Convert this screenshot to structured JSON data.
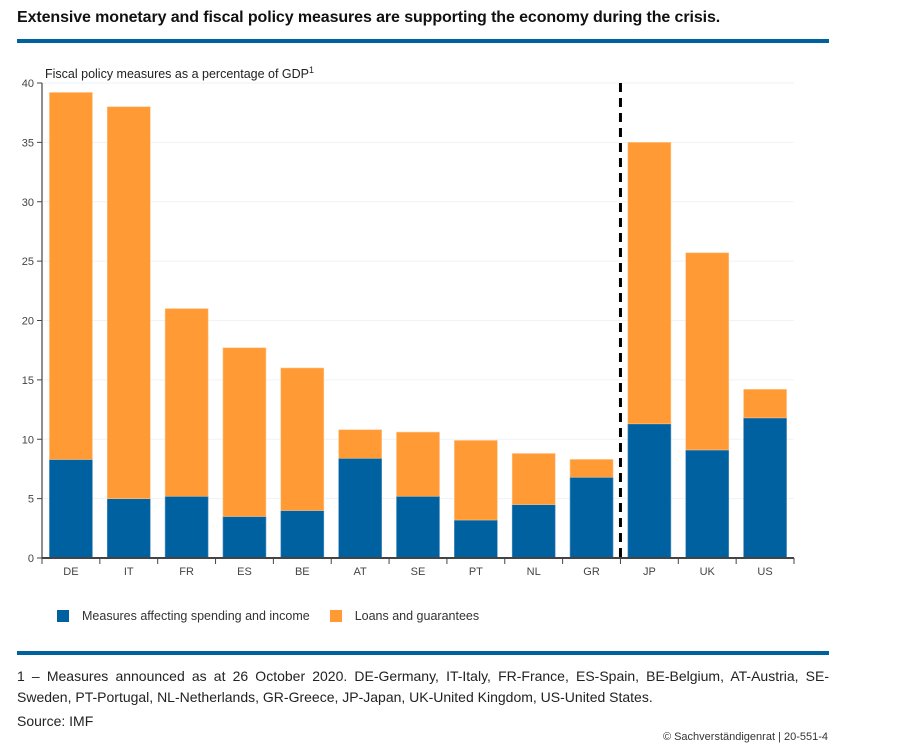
{
  "header": {
    "title": "Extensive monetary and fiscal policy measures are supporting the economy during the crisis."
  },
  "colors": {
    "accent_rule": "#00619f",
    "spending": "#0061a1",
    "loans": "#ff9a35",
    "divider": "#000000"
  },
  "chart_data": {
    "type": "bar",
    "stacked": true,
    "title": "Fiscal policy measures as a percentage of GDP",
    "title_superscript": "1",
    "xlabel": "",
    "ylabel": "",
    "ylim": [
      0,
      40
    ],
    "yticks": [
      0,
      5,
      10,
      15,
      20,
      25,
      30,
      35,
      40
    ],
    "grid": true,
    "categories": [
      "DE",
      "IT",
      "FR",
      "ES",
      "BE",
      "AT",
      "SE",
      "PT",
      "NL",
      "GR",
      "JP",
      "UK",
      "US"
    ],
    "divider_after": "GR",
    "series": [
      {
        "name": "Measures affecting spending and income",
        "color": "#0061a1",
        "values": [
          8.3,
          5.0,
          5.2,
          3.5,
          4.0,
          8.4,
          5.2,
          3.2,
          4.5,
          6.8,
          11.3,
          9.1,
          11.8
        ]
      },
      {
        "name": "Loans and guarantees",
        "color": "#ff9a35",
        "values": [
          30.9,
          33.0,
          15.8,
          14.2,
          12.0,
          2.4,
          5.4,
          6.7,
          4.3,
          1.5,
          23.7,
          16.6,
          2.4
        ]
      }
    ],
    "legend": "bottom-left"
  },
  "footer": {
    "footnote": "1 – Measures announced as at 26 October 2020. DE-Germany, IT-Italy, FR-France, ES-Spain, BE-Belgium, AT-Austria, SE-Sweden, PT-Portugal, NL-Netherlands, GR-Greece, JP-Japan, UK-United Kingdom, US-United States.",
    "source": "Source: IMF",
    "credit": "© Sachverständigenrat | 20-551-4"
  }
}
